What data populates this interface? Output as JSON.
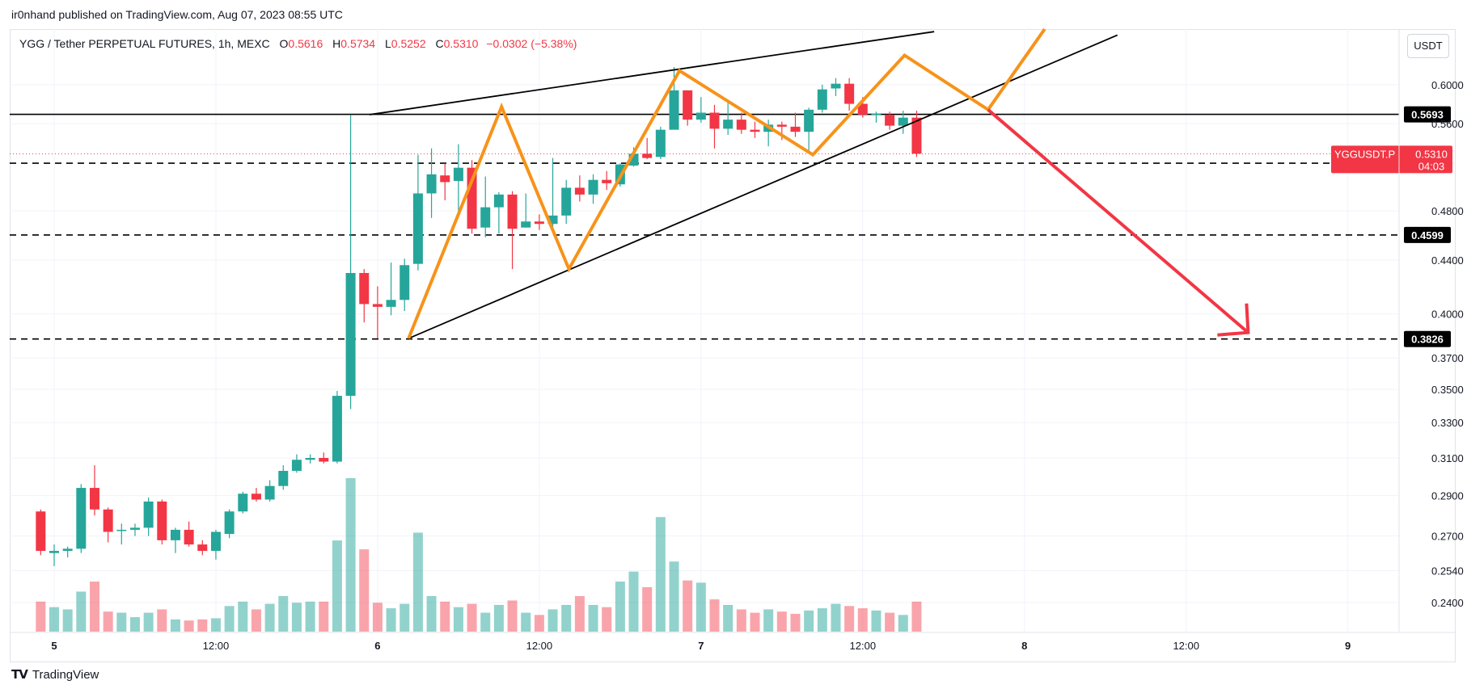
{
  "header": {
    "publish_note": "ir0nhand published on TradingView.com, Aug 07, 2023 08:55 UTC"
  },
  "legend": {
    "symbol": "YGG / Tether PERPETUAL FUTURES, 1h, MEXC",
    "o_label": "O",
    "o": "0.5616",
    "h_label": "H",
    "h": "0.5734",
    "l_label": "L",
    "l": "0.5252",
    "c_label": "C",
    "c": "0.5310",
    "change": "−0.0302 (−5.38%)"
  },
  "currency_button": "USDT",
  "footer": {
    "brand": "TradingView"
  },
  "colors": {
    "up": "#26a69a",
    "down": "#f23645",
    "pattern": "#f7931a",
    "arrow": "#f23645",
    "line": "#000000"
  },
  "chart_data": {
    "type": "candlestick",
    "title": "YGG / Tether PERPETUAL FUTURES, 1h, MEXC",
    "y_scale": "log",
    "y_range": [
      0.228,
      0.662
    ],
    "x_range_hours": [
      -3.3,
      99.8
    ],
    "x_ticks": [
      {
        "label": "5",
        "hour": 0
      },
      {
        "label": "12:00",
        "hour": 12
      },
      {
        "label": "6",
        "hour": 24
      },
      {
        "label": "12:00",
        "hour": 36
      },
      {
        "label": "7",
        "hour": 48
      },
      {
        "label": "12:00",
        "hour": 60
      },
      {
        "label": "8",
        "hour": 72
      },
      {
        "label": "12:00",
        "hour": 84
      },
      {
        "label": "9",
        "hour": 96
      }
    ],
    "y_ticks": [
      "0.6000",
      "0.5600",
      "0.4800",
      "0.4400",
      "0.4000",
      "0.3700",
      "0.3500",
      "0.3300",
      "0.3100",
      "0.2900",
      "0.2700",
      "0.2540",
      "0.2400"
    ],
    "candles": [
      {
        "o": 0.282,
        "h": 0.283,
        "l": 0.261,
        "c": 0.263,
        "v": 27
      },
      {
        "o": 0.262,
        "h": 0.266,
        "l": 0.256,
        "c": 0.263,
        "v": 22
      },
      {
        "o": 0.263,
        "h": 0.265,
        "l": 0.26,
        "c": 0.264,
        "v": 20
      },
      {
        "o": 0.264,
        "h": 0.296,
        "l": 0.262,
        "c": 0.294,
        "v": 36
      },
      {
        "o": 0.294,
        "h": 0.306,
        "l": 0.28,
        "c": 0.283,
        "v": 45
      },
      {
        "o": 0.283,
        "h": 0.284,
        "l": 0.267,
        "c": 0.272,
        "v": 18
      },
      {
        "o": 0.273,
        "h": 0.276,
        "l": 0.266,
        "c": 0.273,
        "v": 17
      },
      {
        "o": 0.273,
        "h": 0.276,
        "l": 0.27,
        "c": 0.274,
        "v": 13
      },
      {
        "o": 0.274,
        "h": 0.289,
        "l": 0.27,
        "c": 0.287,
        "v": 17
      },
      {
        "o": 0.287,
        "h": 0.288,
        "l": 0.266,
        "c": 0.268,
        "v": 20
      },
      {
        "o": 0.268,
        "h": 0.274,
        "l": 0.262,
        "c": 0.273,
        "v": 11
      },
      {
        "o": 0.273,
        "h": 0.277,
        "l": 0.265,
        "c": 0.266,
        "v": 10
      },
      {
        "o": 0.266,
        "h": 0.268,
        "l": 0.261,
        "c": 0.263,
        "v": 11
      },
      {
        "o": 0.263,
        "h": 0.273,
        "l": 0.259,
        "c": 0.272,
        "v": 12
      },
      {
        "o": 0.271,
        "h": 0.283,
        "l": 0.269,
        "c": 0.282,
        "v": 23
      },
      {
        "o": 0.282,
        "h": 0.292,
        "l": 0.281,
        "c": 0.291,
        "v": 27
      },
      {
        "o": 0.291,
        "h": 0.294,
        "l": 0.287,
        "c": 0.288,
        "v": 20
      },
      {
        "o": 0.288,
        "h": 0.298,
        "l": 0.287,
        "c": 0.295,
        "v": 25
      },
      {
        "o": 0.295,
        "h": 0.306,
        "l": 0.293,
        "c": 0.303,
        "v": 32
      },
      {
        "o": 0.303,
        "h": 0.312,
        "l": 0.302,
        "c": 0.309,
        "v": 26
      },
      {
        "o": 0.309,
        "h": 0.312,
        "l": 0.307,
        "c": 0.31,
        "v": 27
      },
      {
        "o": 0.31,
        "h": 0.313,
        "l": 0.307,
        "c": 0.308,
        "v": 27
      },
      {
        "o": 0.308,
        "h": 0.349,
        "l": 0.307,
        "c": 0.346,
        "v": 82
      },
      {
        "o": 0.346,
        "h": 0.569,
        "l": 0.338,
        "c": 0.43,
        "v": 138
      },
      {
        "o": 0.43,
        "h": 0.433,
        "l": 0.394,
        "c": 0.407,
        "v": 74
      },
      {
        "o": 0.407,
        "h": 0.42,
        "l": 0.383,
        "c": 0.405,
        "v": 26
      },
      {
        "o": 0.405,
        "h": 0.438,
        "l": 0.399,
        "c": 0.41,
        "v": 21
      },
      {
        "o": 0.41,
        "h": 0.441,
        "l": 0.402,
        "c": 0.436,
        "v": 25
      },
      {
        "o": 0.437,
        "h": 0.53,
        "l": 0.432,
        "c": 0.495,
        "v": 89
      },
      {
        "o": 0.495,
        "h": 0.536,
        "l": 0.474,
        "c": 0.512,
        "v": 32
      },
      {
        "o": 0.511,
        "h": 0.522,
        "l": 0.489,
        "c": 0.505,
        "v": 27
      },
      {
        "o": 0.506,
        "h": 0.54,
        "l": 0.479,
        "c": 0.518,
        "v": 22
      },
      {
        "o": 0.518,
        "h": 0.525,
        "l": 0.461,
        "c": 0.465,
        "v": 25
      },
      {
        "o": 0.466,
        "h": 0.51,
        "l": 0.458,
        "c": 0.483,
        "v": 17
      },
      {
        "o": 0.483,
        "h": 0.496,
        "l": 0.461,
        "c": 0.494,
        "v": 24
      },
      {
        "o": 0.494,
        "h": 0.497,
        "l": 0.433,
        "c": 0.465,
        "v": 28
      },
      {
        "o": 0.466,
        "h": 0.495,
        "l": 0.466,
        "c": 0.471,
        "v": 17
      },
      {
        "o": 0.471,
        "h": 0.477,
        "l": 0.464,
        "c": 0.469,
        "v": 15
      },
      {
        "o": 0.469,
        "h": 0.527,
        "l": 0.465,
        "c": 0.476,
        "v": 20
      },
      {
        "o": 0.476,
        "h": 0.507,
        "l": 0.469,
        "c": 0.5,
        "v": 24
      },
      {
        "o": 0.5,
        "h": 0.511,
        "l": 0.488,
        "c": 0.494,
        "v": 32
      },
      {
        "o": 0.494,
        "h": 0.512,
        "l": 0.486,
        "c": 0.507,
        "v": 24
      },
      {
        "o": 0.507,
        "h": 0.515,
        "l": 0.498,
        "c": 0.504,
        "v": 22
      },
      {
        "o": 0.503,
        "h": 0.522,
        "l": 0.501,
        "c": 0.521,
        "v": 45
      },
      {
        "o": 0.52,
        "h": 0.537,
        "l": 0.519,
        "c": 0.531,
        "v": 54
      },
      {
        "o": 0.531,
        "h": 0.546,
        "l": 0.526,
        "c": 0.527,
        "v": 40
      },
      {
        "o": 0.528,
        "h": 0.557,
        "l": 0.526,
        "c": 0.554,
        "v": 103
      },
      {
        "o": 0.554,
        "h": 0.619,
        "l": 0.555,
        "c": 0.594,
        "v": 63
      },
      {
        "o": 0.594,
        "h": 0.594,
        "l": 0.558,
        "c": 0.564,
        "v": 46
      },
      {
        "o": 0.564,
        "h": 0.587,
        "l": 0.561,
        "c": 0.571,
        "v": 44
      },
      {
        "o": 0.571,
        "h": 0.579,
        "l": 0.536,
        "c": 0.555,
        "v": 29
      },
      {
        "o": 0.555,
        "h": 0.583,
        "l": 0.549,
        "c": 0.564,
        "v": 24
      },
      {
        "o": 0.564,
        "h": 0.571,
        "l": 0.55,
        "c": 0.554,
        "v": 20
      },
      {
        "o": 0.554,
        "h": 0.562,
        "l": 0.546,
        "c": 0.552,
        "v": 17
      },
      {
        "o": 0.552,
        "h": 0.564,
        "l": 0.538,
        "c": 0.559,
        "v": 20
      },
      {
        "o": 0.559,
        "h": 0.562,
        "l": 0.544,
        "c": 0.557,
        "v": 18
      },
      {
        "o": 0.557,
        "h": 0.571,
        "l": 0.547,
        "c": 0.552,
        "v": 16
      },
      {
        "o": 0.552,
        "h": 0.576,
        "l": 0.534,
        "c": 0.574,
        "v": 19
      },
      {
        "o": 0.574,
        "h": 0.6,
        "l": 0.571,
        "c": 0.595,
        "v": 21
      },
      {
        "o": 0.596,
        "h": 0.607,
        "l": 0.588,
        "c": 0.601,
        "v": 25
      },
      {
        "o": 0.601,
        "h": 0.607,
        "l": 0.573,
        "c": 0.58,
        "v": 23
      },
      {
        "o": 0.58,
        "h": 0.587,
        "l": 0.566,
        "c": 0.569,
        "v": 21
      },
      {
        "o": 0.569,
        "h": 0.572,
        "l": 0.561,
        "c": 0.57,
        "v": 19
      },
      {
        "o": 0.569,
        "h": 0.572,
        "l": 0.554,
        "c": 0.558,
        "v": 17
      },
      {
        "o": 0.558,
        "h": 0.573,
        "l": 0.55,
        "c": 0.566,
        "v": 15
      },
      {
        "o": 0.566,
        "h": 0.573,
        "l": 0.528,
        "c": 0.531,
        "v": 27
      }
    ],
    "horizontal_levels": [
      {
        "value": 0.5693,
        "label": "0.5693",
        "style": "solid"
      },
      {
        "value": 0.5222,
        "label": "0.5222",
        "style": "dashed"
      },
      {
        "value": 0.4599,
        "label": "0.4599",
        "style": "dashed"
      },
      {
        "value": 0.3826,
        "label": "0.3826",
        "style": "dashed"
      }
    ],
    "current_price": {
      "label": "YGGUSDT.P",
      "value": "0.5310",
      "countdown": "04:03"
    },
    "trendlines": [
      {
        "from": [
          23.4,
          0.569
        ],
        "to": [
          65.3,
          0.659
        ]
      },
      {
        "from": [
          26.3,
          0.383
        ],
        "to": [
          78.9,
          0.655
        ]
      }
    ],
    "pattern_path": [
      [
        26.3,
        0.383
      ],
      [
        33.2,
        0.577
      ],
      [
        38.2,
        0.433
      ],
      [
        46.4,
        0.615
      ],
      [
        56.3,
        0.53
      ],
      [
        63.1,
        0.632
      ],
      [
        69.3,
        0.574
      ],
      [
        73.5,
        0.662
      ]
    ],
    "arrow": {
      "from": [
        69.3,
        0.574
      ],
      "to": [
        88.6,
        0.387
      ]
    }
  }
}
